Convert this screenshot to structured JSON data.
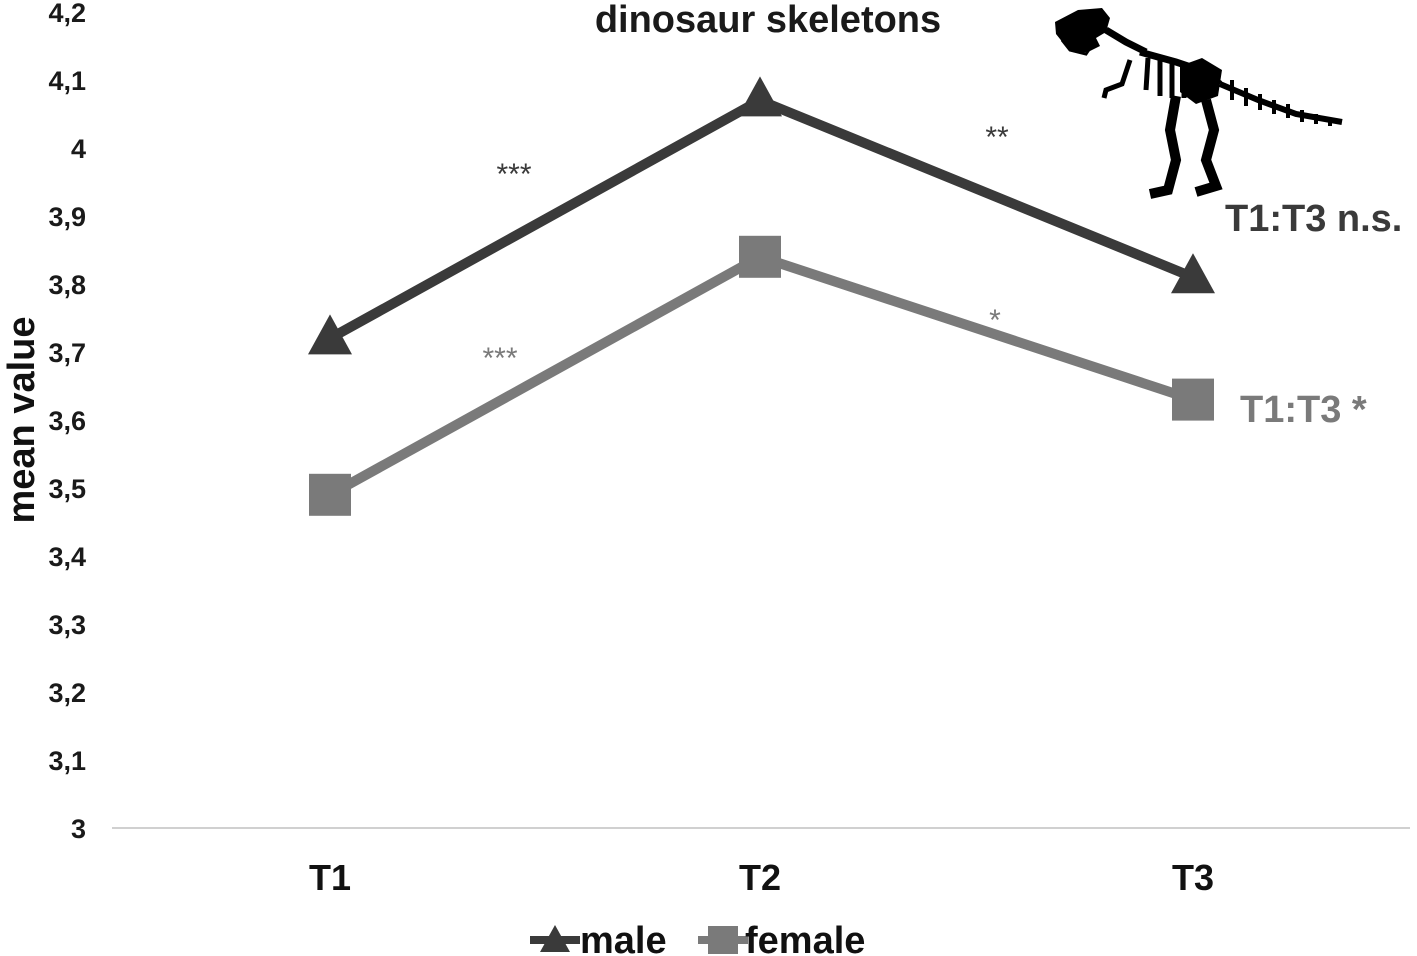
{
  "chart_data": {
    "type": "line",
    "title": "dinosaur skeletons",
    "xlabel": "",
    "ylabel": "mean value",
    "categories": [
      "T1",
      "T2",
      "T3"
    ],
    "ylim": [
      3,
      4.2
    ],
    "yticks": [
      "3",
      "3,1",
      "3,2",
      "3,3",
      "3,4",
      "3,5",
      "3,6",
      "3,7",
      "3,8",
      "3,9",
      "4",
      "4,1",
      "4,2"
    ],
    "grid": false,
    "legend": "bottom",
    "series": [
      {
        "name": "male",
        "values": [
          3.72,
          4.07,
          3.81
        ],
        "color": "#3a3a3a",
        "marker": "triangle"
      },
      {
        "name": "female",
        "values": [
          3.49,
          3.84,
          3.63
        ],
        "color": "#7a7a7a",
        "marker": "square"
      }
    ],
    "annotations": {
      "male_t1_t2": "***",
      "male_t2_t3": "**",
      "female_t1_t2": "***",
      "female_t2_t3": "*",
      "male_t1_t3": "T1:T3 n.s.",
      "female_t1_t3": "T1:T3 *"
    },
    "icon": "t-rex-skeleton-icon"
  }
}
